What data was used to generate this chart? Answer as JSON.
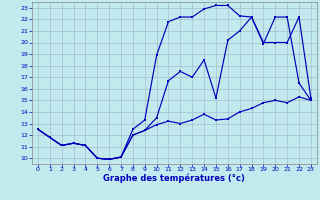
{
  "title": "Graphe des températures (°c)",
  "bg_color": "#c0eaee",
  "grid_color": "#aabbcc",
  "line_color": "#0000bb",
  "xlim": [
    -0.5,
    23.5
  ],
  "ylim": [
    9.5,
    23.5
  ],
  "xticks": [
    0,
    1,
    2,
    3,
    4,
    5,
    6,
    7,
    8,
    9,
    10,
    11,
    12,
    13,
    14,
    15,
    16,
    17,
    18,
    19,
    20,
    21,
    22,
    23
  ],
  "yticks": [
    10,
    11,
    12,
    13,
    14,
    15,
    16,
    17,
    18,
    19,
    20,
    21,
    22,
    23
  ],
  "line1_x": [
    0,
    1,
    2,
    3,
    4,
    5,
    6,
    7,
    8,
    9,
    10,
    11,
    12,
    13,
    14,
    15,
    16,
    17,
    18,
    19,
    20,
    21,
    22,
    23
  ],
  "line1_y": [
    12.5,
    11.8,
    11.1,
    11.3,
    11.1,
    10.0,
    9.9,
    10.1,
    12.0,
    12.4,
    12.9,
    13.2,
    13.0,
    13.3,
    13.8,
    13.3,
    13.4,
    14.0,
    14.3,
    14.8,
    15.0,
    14.8,
    15.3,
    15.0
  ],
  "line2_x": [
    0,
    1,
    2,
    3,
    4,
    5,
    6,
    7,
    8,
    9,
    10,
    11,
    12,
    13,
    14,
    15,
    16,
    17,
    18,
    19,
    20,
    21,
    22,
    23
  ],
  "line2_y": [
    12.5,
    11.8,
    11.1,
    11.3,
    11.1,
    10.0,
    9.9,
    10.1,
    12.5,
    13.3,
    18.9,
    21.8,
    22.2,
    22.2,
    22.9,
    23.2,
    23.2,
    22.3,
    22.2,
    19.9,
    22.2,
    22.2,
    16.5,
    15.0
  ],
  "line3_x": [
    0,
    1,
    2,
    3,
    4,
    5,
    6,
    7,
    8,
    9,
    10,
    11,
    12,
    13,
    14,
    15,
    16,
    17,
    18,
    19,
    20,
    21,
    22,
    23
  ],
  "line3_y": [
    12.5,
    11.8,
    11.1,
    11.3,
    11.1,
    10.0,
    9.9,
    10.1,
    12.0,
    12.4,
    13.5,
    16.7,
    17.5,
    17.0,
    18.5,
    15.2,
    20.2,
    21.0,
    22.2,
    20.0,
    20.0,
    20.0,
    22.2,
    15.2
  ]
}
